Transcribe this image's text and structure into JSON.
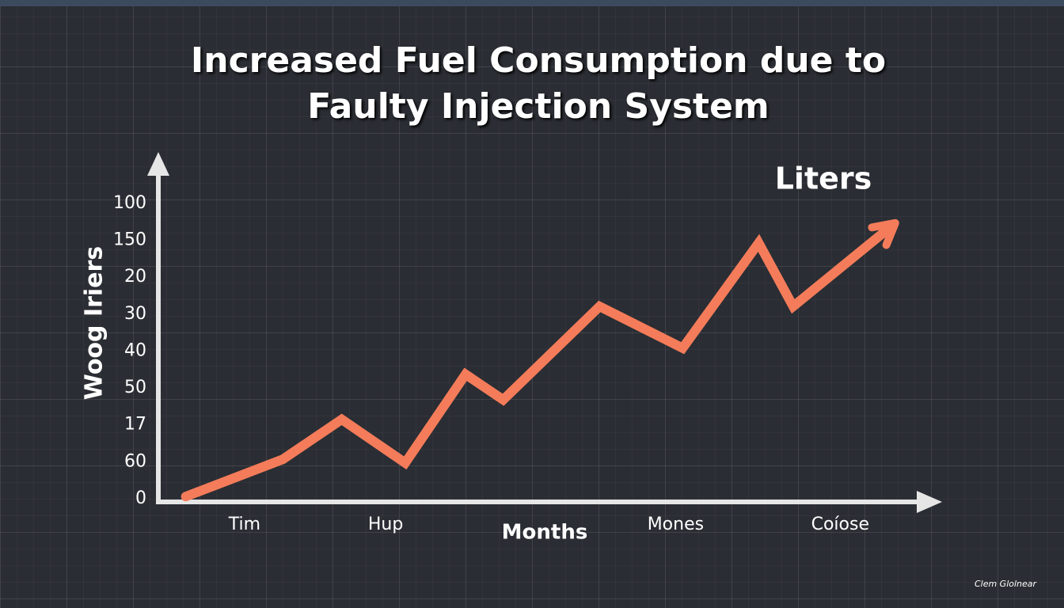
{
  "chart_data": {
    "type": "line",
    "title": "Increased Fuel Consumption due to Faulty Injection System",
    "y_label": "Woog Iriers",
    "x_label": "Months",
    "annotation": "Liters",
    "watermark": "Clem Glolnear",
    "xlim": [
      0,
      100
    ],
    "ylim": [
      0,
      9.2
    ],
    "xticks": [
      {
        "value": 11,
        "label": "Tim"
      },
      {
        "value": 29,
        "label": "Hup"
      },
      {
        "value": 66,
        "label": "Mones"
      },
      {
        "value": 87,
        "label": "Coíose"
      }
    ],
    "yticks": [
      {
        "value": 0,
        "label": "0"
      },
      {
        "value": 1,
        "label": "60"
      },
      {
        "value": 2,
        "label": "17"
      },
      {
        "value": 3,
        "label": "50"
      },
      {
        "value": 4,
        "label": "40"
      },
      {
        "value": 5,
        "label": "30"
      },
      {
        "value": 6,
        "label": "20"
      },
      {
        "value": 7,
        "label": "150"
      },
      {
        "value": 8,
        "label": "100"
      }
    ],
    "x": [
      3.5,
      15.9,
      23.4,
      31.5,
      39.2,
      44.0,
      56.3,
      66.9,
      76.6,
      81.0,
      93.4
    ],
    "series": [
      {
        "name": "Liters",
        "color": "#f47c5a",
        "values": [
          0.06,
          1.07,
          2.15,
          0.97,
          3.37,
          2.68,
          5.21,
          4.08,
          6.93,
          5.21,
          7.36
        ]
      }
    ]
  }
}
